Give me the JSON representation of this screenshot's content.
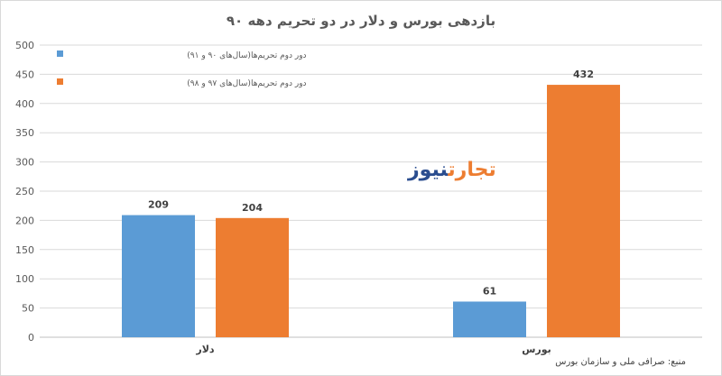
{
  "chart_data": {
    "type": "bar",
    "title": "بازدهی بورس و دلار در دو تحریم دهه ۹۰",
    "categories": [
      "دلار",
      "بورس"
    ],
    "series": [
      {
        "name": "دور دوم تحریم‌ها(سال‌های ۹۰ و ۹۱)",
        "values": [
          209,
          61
        ],
        "color": "#5b9bd5"
      },
      {
        "name": "دور دوم تحریم‌ها(سال‌های ۹۷ و ۹۸)",
        "values": [
          204,
          432
        ],
        "color": "#ed7d31"
      }
    ],
    "ylim": [
      0,
      500
    ],
    "yticks": [
      0,
      50,
      100,
      150,
      200,
      250,
      300,
      350,
      400,
      450,
      500
    ],
    "grid": true,
    "legend_position": "top-left",
    "xlabel": "",
    "ylabel": ""
  },
  "watermark": {
    "text_a": "تجارت",
    "text_b": "نیوز"
  },
  "source": "منبع: صرافی ملی و سازمان بورس"
}
